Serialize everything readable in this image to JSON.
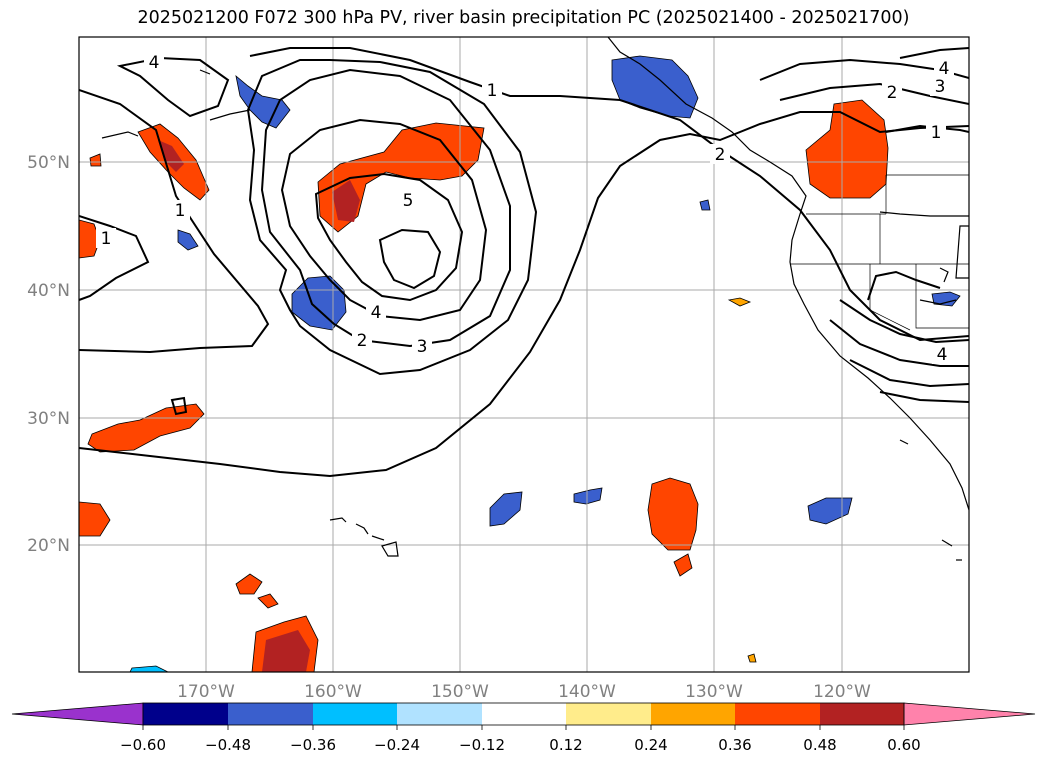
{
  "title": "2025021200 F072 300 hPa PV, river basin precipitation PC (2025021400 - 2025021700)",
  "lat_labels": [
    "50°N",
    "40°N",
    "30°N",
    "20°N"
  ],
  "lon_labels": [
    "170°W",
    "160°W",
    "150°W",
    "140°W",
    "130°W",
    "120°W"
  ],
  "contour_labels": [
    "4",
    "1",
    "1",
    "5",
    "4",
    "3",
    "2",
    "2",
    "1",
    "2",
    "3",
    "4",
    "4",
    "1"
  ],
  "colorbar": {
    "ticks": [
      "−0.60",
      "−0.48",
      "−0.36",
      "−0.24",
      "−0.12",
      "0.12",
      "0.24",
      "0.36",
      "0.48",
      "0.60"
    ],
    "colors": [
      "#9a32cd",
      "#00008b",
      "#3a5fcd",
      "#00bfff",
      "#b0e2ff",
      "#ffffff",
      "#ffec8b",
      "#ffa500",
      "#ff4500",
      "#b22222",
      "#ff82ab"
    ]
  }
}
